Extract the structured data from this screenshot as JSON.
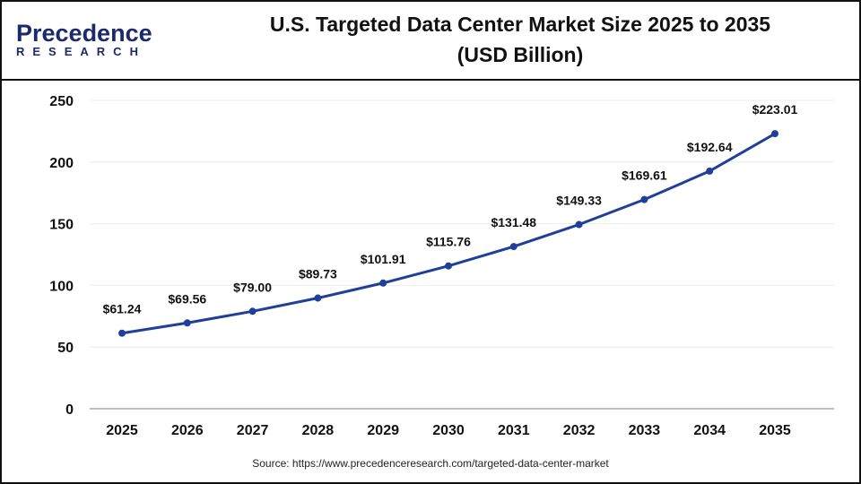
{
  "logo": {
    "brand_line1": "Precedence",
    "brand_line2": "RESEARCH"
  },
  "header": {
    "title_line1": "U.S. Targeted Data Center Market Size 2025 to 2035",
    "title_line2": "(USD Billion)"
  },
  "source": "Source: https://www.precedenceresearch.com/targeted-data-center-market",
  "colors": {
    "line": "#1f3f99",
    "grid": "#ececec",
    "axis": "#bdbdbd"
  },
  "chart_data": {
    "type": "line",
    "title": "U.S. Targeted Data Center Market Size 2025 to 2035 (USD Billion)",
    "categories": [
      "2025",
      "2026",
      "2027",
      "2028",
      "2029",
      "2030",
      "2031",
      "2032",
      "2033",
      "2034",
      "2035"
    ],
    "values": [
      61.24,
      69.56,
      79.0,
      89.73,
      101.91,
      115.76,
      131.48,
      149.33,
      169.61,
      192.64,
      223.01
    ],
    "data_labels": [
      "$61.24",
      "$69.56",
      "$79.00",
      "$89.73",
      "$101.91",
      "$115.76",
      "$131.48",
      "$149.33",
      "$169.61",
      "$192.64",
      "$223.01"
    ],
    "yticks": [
      0,
      50,
      100,
      150,
      200,
      250
    ],
    "ylim": [
      0,
      250
    ],
    "grid": true,
    "legend": "none"
  }
}
